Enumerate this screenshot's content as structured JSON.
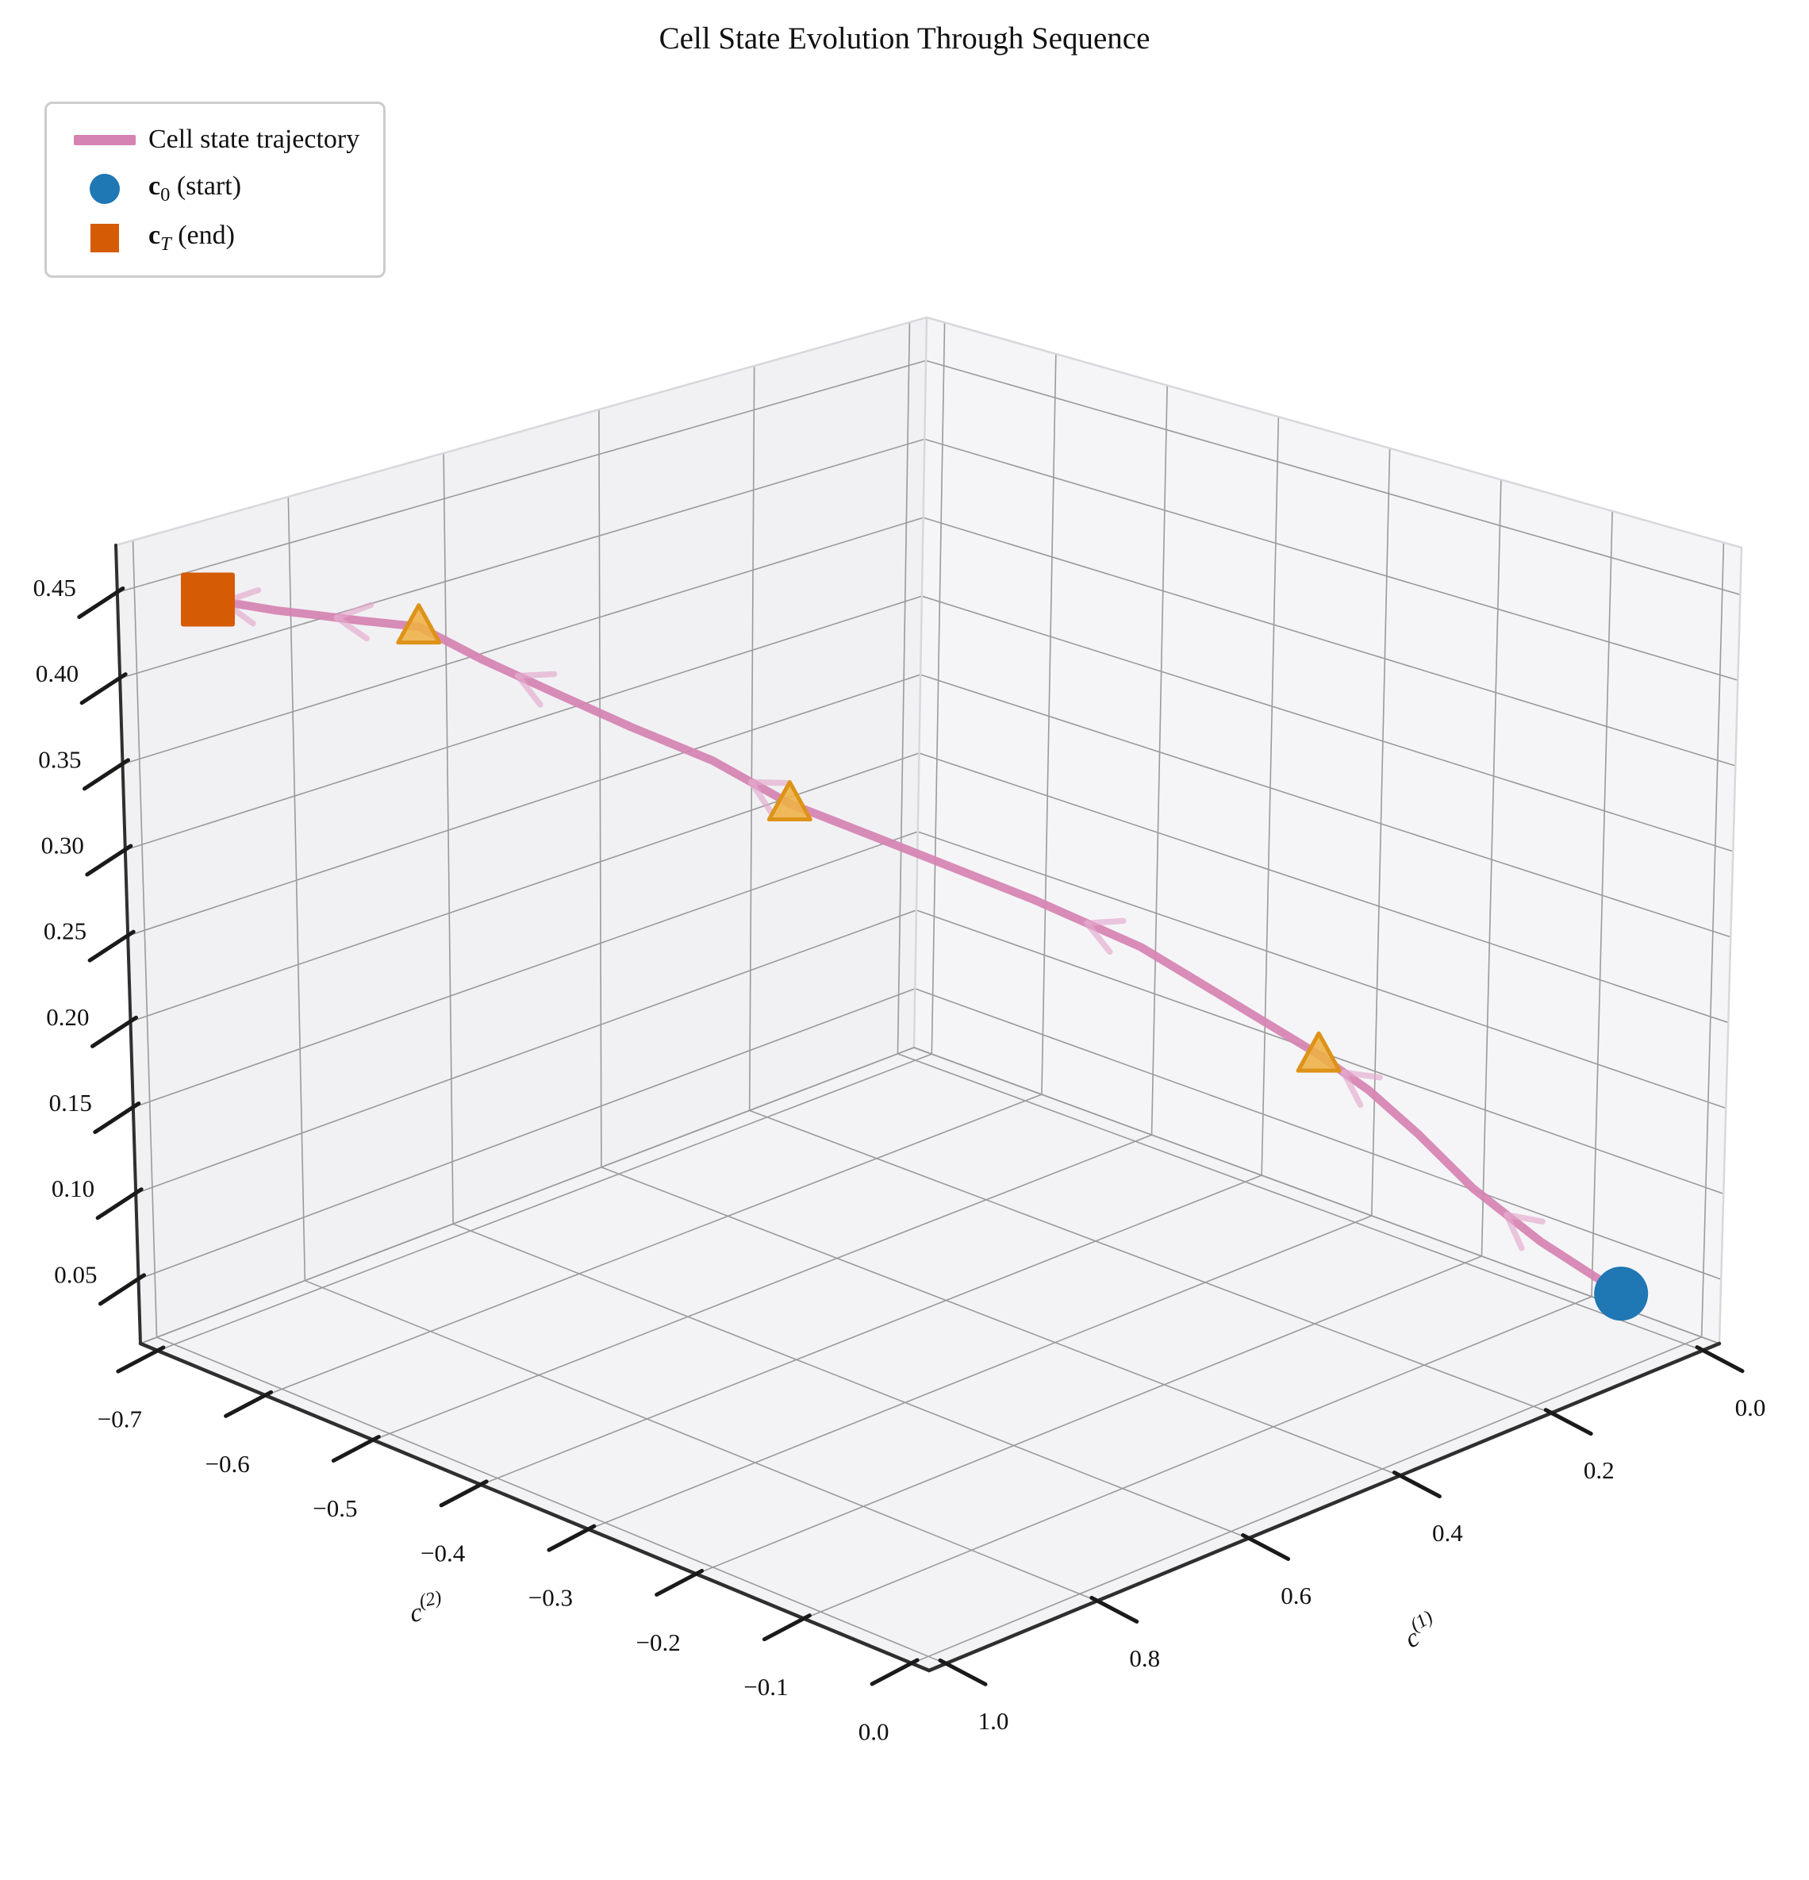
{
  "title": "Cell State Evolution Through Sequence",
  "legend": {
    "trajectory_label": "Cell state trajectory",
    "start": {
      "var": "c",
      "sub": "0",
      "rest": " (start)"
    },
    "end": {
      "var": "c",
      "sub": "T",
      "rest": " (end)"
    }
  },
  "colors": {
    "trajectory": "#d583b2",
    "arrow": "#e4a9cc",
    "start_marker": "#1f77b4",
    "end_marker": "#d55c04",
    "step_marker_fill": "#eeb044",
    "step_marker_edge": "#dd9318",
    "grid": "#9a9a9a",
    "pane_left": "#f1f1f4",
    "pane_right": "#f5f5f8",
    "pane_bottom": "#f3f3f6",
    "pane_edge": "#d8d8dc",
    "spine": "#2f2f2f",
    "text": "#111111"
  },
  "chart_data": {
    "type": "line",
    "subtype": "3d-trajectory",
    "title": "Cell State Evolution Through Sequence",
    "xlabel_base": "c",
    "xlabel_sup": "(1)",
    "ylabel_base": "c",
    "ylabel_sup": "(2)",
    "zlabel": "",
    "x_ticks": [
      0.0,
      0.2,
      0.4,
      0.6,
      0.8,
      1.0
    ],
    "y_ticks": [
      -0.7,
      -0.6,
      -0.5,
      -0.4,
      -0.3,
      -0.2,
      -0.1,
      0.0
    ],
    "z_ticks": [
      0.05,
      0.1,
      0.15,
      0.2,
      0.25,
      0.3,
      0.35,
      0.4,
      0.45
    ],
    "xlim": [
      -0.022,
      1.022
    ],
    "ylim": [
      -0.7161,
      0.0161
    ],
    "zlim": [
      0.0125,
      0.4775
    ],
    "grid": true,
    "legend_position": "upper left",
    "trajectory": {
      "x": [
        0.05,
        0.1,
        0.14,
        0.17,
        0.2,
        0.23,
        0.285,
        0.335,
        0.405,
        0.48,
        0.55,
        0.6,
        0.655,
        0.705,
        0.755,
        0.8,
        0.845,
        0.878,
        0.905,
        0.928,
        0.95
      ],
      "y": [
        -0.025,
        -0.065,
        -0.1,
        -0.13,
        -0.155,
        -0.18,
        -0.23,
        -0.27,
        -0.32,
        -0.38,
        -0.44,
        -0.475,
        -0.51,
        -0.545,
        -0.575,
        -0.6,
        -0.622,
        -0.64,
        -0.655,
        -0.672,
        -0.685
      ],
      "z": [
        0.045,
        0.075,
        0.105,
        0.135,
        0.16,
        0.18,
        0.212,
        0.24,
        0.268,
        0.295,
        0.32,
        0.345,
        0.365,
        0.385,
        0.405,
        0.425,
        0.43,
        0.434,
        0.437,
        0.44,
        0.443
      ]
    },
    "start_point": {
      "x": 0.05,
      "y": -0.025,
      "z": 0.045,
      "label": "c0 (start)"
    },
    "end_point": {
      "x": 0.95,
      "y": -0.685,
      "z": 0.443,
      "label": "cT (end)"
    },
    "marker_steps": [
      5,
      10,
      15
    ],
    "arrow_positions": [
      1.5,
      4.5,
      7.5,
      10.5,
      13.5,
      16.5,
      19.5
    ]
  }
}
